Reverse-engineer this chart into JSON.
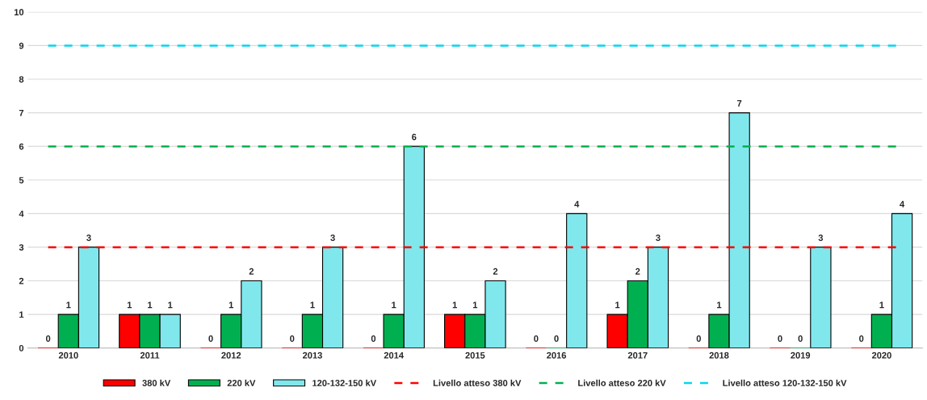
{
  "chart_data": {
    "type": "bar",
    "categories": [
      "2010",
      "2011",
      "2012",
      "2013",
      "2014",
      "2015",
      "2016",
      "2017",
      "2018",
      "2019",
      "2020"
    ],
    "series": [
      {
        "name": "380 kV",
        "color": "#ff0000",
        "values": [
          0,
          1,
          0,
          0,
          0,
          1,
          0,
          1,
          0,
          0,
          0
        ]
      },
      {
        "name": "220 kV",
        "color": "#00b050",
        "values": [
          1,
          1,
          1,
          1,
          1,
          1,
          0,
          2,
          1,
          0,
          1
        ]
      },
      {
        "name": "120-132-150 kV",
        "color": "#80e8ec",
        "values": [
          3,
          1,
          2,
          3,
          6,
          2,
          4,
          3,
          7,
          3,
          4
        ]
      }
    ],
    "ref_lines": [
      {
        "axis": "y",
        "value": 3,
        "label": "Livello atteso 380 kV",
        "color": "#ff0000",
        "line_style": "dashed"
      },
      {
        "axis": "y",
        "value": 6,
        "label": "Livello atteso 220 kV",
        "color": "#00b050",
        "line_style": "dashed"
      },
      {
        "axis": "y",
        "value": 9,
        "label": "Livello atteso 120-132-150 kV",
        "color": "#00d8f0",
        "line_style": "dashed"
      }
    ],
    "ylim": [
      0,
      10
    ],
    "yticks": [
      0,
      1,
      2,
      3,
      4,
      5,
      6,
      7,
      8,
      9,
      10
    ],
    "grid": "y",
    "legend": "bottom",
    "data_labels": true
  }
}
